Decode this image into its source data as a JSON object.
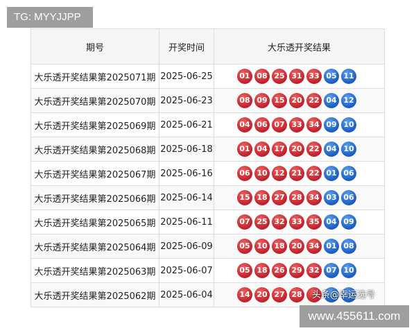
{
  "tg_label": "TG: MYYJJPP",
  "headers": [
    "期号",
    "开奖时间",
    "大乐透开奖结果"
  ],
  "rows": [
    {
      "issue": "大乐透开奖结果第2025071期",
      "date": "2025-06-25",
      "red": [
        "01",
        "08",
        "25",
        "31",
        "33"
      ],
      "blue": [
        "05",
        "11"
      ]
    },
    {
      "issue": "大乐透开奖结果第2025070期",
      "date": "2025-06-23",
      "red": [
        "08",
        "09",
        "15",
        "20",
        "22"
      ],
      "blue": [
        "04",
        "12"
      ]
    },
    {
      "issue": "大乐透开奖结果第2025069期",
      "date": "2025-06-21",
      "red": [
        "04",
        "06",
        "07",
        "33",
        "34"
      ],
      "blue": [
        "09",
        "10"
      ]
    },
    {
      "issue": "大乐透开奖结果第2025068期",
      "date": "2025-06-18",
      "red": [
        "01",
        "04",
        "17",
        "20",
        "22"
      ],
      "blue": [
        "04",
        "10"
      ]
    },
    {
      "issue": "大乐透开奖结果第2025067期",
      "date": "2025-06-16",
      "red": [
        "06",
        "10",
        "12",
        "21",
        "22"
      ],
      "blue": [
        "01",
        "06"
      ]
    },
    {
      "issue": "大乐透开奖结果第2025066期",
      "date": "2025-06-14",
      "red": [
        "15",
        "18",
        "27",
        "28",
        "34"
      ],
      "blue": [
        "03",
        "06"
      ]
    },
    {
      "issue": "大乐透开奖结果第2025065期",
      "date": "2025-06-11",
      "red": [
        "07",
        "25",
        "32",
        "33",
        "35"
      ],
      "blue": [
        "04",
        "09"
      ]
    },
    {
      "issue": "大乐透开奖结果第2025064期",
      "date": "2025-06-09",
      "red": [
        "05",
        "10",
        "18",
        "20",
        "34"
      ],
      "blue": [
        "01",
        "08"
      ]
    },
    {
      "issue": "大乐透开奖结果第2025063期",
      "date": "2025-06-07",
      "red": [
        "05",
        "18",
        "26",
        "29",
        "32"
      ],
      "blue": [
        "07",
        "10"
      ]
    },
    {
      "issue": "大乐透开奖结果第2025062期",
      "date": "2025-06-04",
      "red": [
        "14",
        "20",
        "27",
        "28",
        ""
      ],
      "blue": [
        "",
        ""
      ]
    }
  ],
  "watermark": "头条@幸运选号",
  "site": "www.455611.com",
  "colors": {
    "red_ball": "#c0202a",
    "blue_ball": "#1a5cc0"
  }
}
